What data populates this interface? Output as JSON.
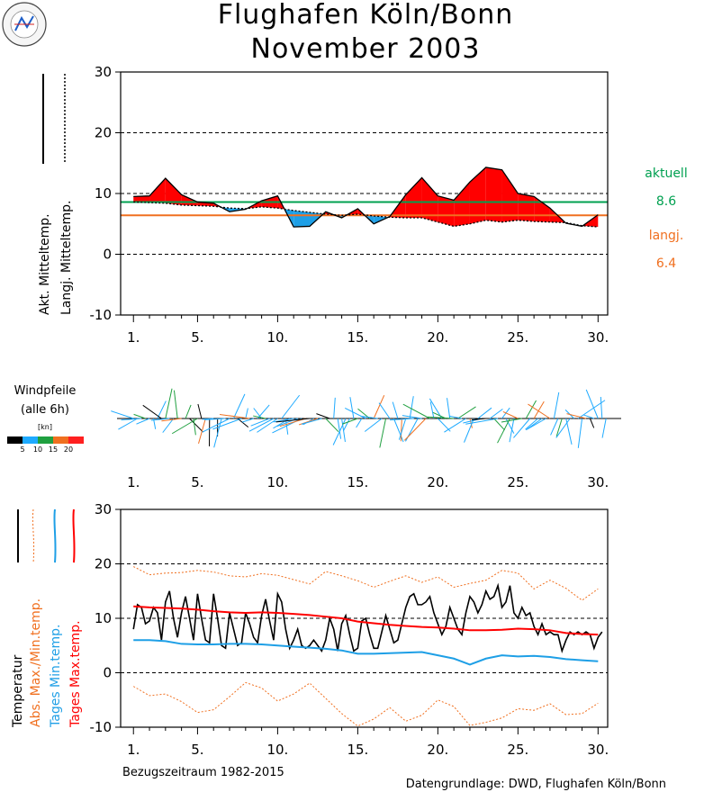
{
  "title": {
    "line1": "Flughafen Köln/Bonn",
    "line2": "November  2003"
  },
  "logo_text": "Uni-Leipzig Wetterdienst",
  "colors": {
    "above": "#ff0000",
    "below": "#1e9fe6",
    "aktuell": "#00a050",
    "langj": "#f07020",
    "black": "#000000",
    "windBlack": "#000000",
    "wind1": "#1eaaff",
    "wind2": "#20a040",
    "wind3": "#f07020",
    "wind4": "#ff2020"
  },
  "panel1": {
    "ylabels": [
      "Akt. Mitteltemp.",
      "Langj. Mitteltemp."
    ],
    "side": {
      "label1": "aktuell",
      "value1": "8.6",
      "label2": "langj.",
      "value2": "6.4"
    }
  },
  "wind": {
    "title": "Windpfeile",
    "subtitle": "(alle 6h)",
    "unit": "[kn]",
    "legend_ticks": [
      "5",
      "10",
      "15",
      "20"
    ]
  },
  "panel2": {
    "ylabels": [
      "Temperatur",
      "Abs. Max./Min.temp.",
      "Tages Min.temp.",
      "Tages Max.temp."
    ]
  },
  "footer": {
    "left": "Bezugszeitraum 1982-2015",
    "right": "Datengrundlage: DWD, Flughafen Köln/Bonn"
  },
  "chart_data": [
    {
      "type": "area",
      "x_ticks": [
        "1.",
        "5.",
        "10.",
        "15.",
        "20.",
        "25.",
        "30."
      ],
      "x_tick_values": [
        1,
        5,
        10,
        15,
        20,
        25,
        30
      ],
      "xlim": [
        0.2,
        30.6
      ],
      "ylim": [
        -10,
        30
      ],
      "y_ticks": [
        -10,
        0,
        10,
        20,
        30
      ],
      "grid": true,
      "days": [
        1,
        2,
        3,
        4,
        5,
        6,
        7,
        8,
        9,
        10,
        11,
        12,
        13,
        14,
        15,
        16,
        17,
        18,
        19,
        20,
        21,
        22,
        23,
        24,
        25,
        26,
        27,
        28,
        29,
        30
      ],
      "series": [
        {
          "name": "Akt. Mitteltemp.",
          "style": "solid",
          "values": [
            9.5,
            9.6,
            12.5,
            9.8,
            8.6,
            8.4,
            7.0,
            7.4,
            8.8,
            9.6,
            4.5,
            4.6,
            7.0,
            6.0,
            7.5,
            5.0,
            6.2,
            9.8,
            12.6,
            9.6,
            8.9,
            11.9,
            14.3,
            13.9,
            10.0,
            9.5,
            7.6,
            5.1,
            4.6,
            6.5
          ]
        },
        {
          "name": "Langj. Mitteltemp.",
          "style": "dotted",
          "values": [
            8.6,
            8.5,
            8.4,
            8.1,
            8.0,
            7.9,
            7.6,
            7.5,
            7.8,
            7.6,
            7.2,
            6.9,
            6.6,
            6.4,
            6.6,
            6.3,
            6.1,
            6.0,
            6.0,
            5.3,
            4.6,
            5.0,
            5.6,
            5.3,
            5.6,
            5.4,
            5.3,
            5.2,
            4.7,
            4.5
          ]
        }
      ],
      "hlines": [
        {
          "name": "aktuell",
          "value": 8.6
        },
        {
          "name": "langj.",
          "value": 6.4
        }
      ]
    },
    {
      "type": "line",
      "x_ticks": [
        "1.",
        "5.",
        "10.",
        "15.",
        "20.",
        "25.",
        "30."
      ],
      "x_tick_values": [
        1,
        5,
        10,
        15,
        20,
        25,
        30
      ],
      "xlim": [
        0.2,
        30.6
      ],
      "ylim": [
        -10,
        30
      ],
      "y_ticks": [
        -10,
        0,
        10,
        20,
        30
      ],
      "grid": true,
      "series": [
        {
          "name": "Temperatur",
          "style": "solid",
          "color": "black",
          "x": [
            1,
            1.25,
            1.5,
            1.75,
            2,
            2.25,
            2.5,
            2.75,
            3,
            3.25,
            3.5,
            3.75,
            4,
            4.25,
            4.5,
            4.75,
            5,
            5.25,
            5.5,
            5.75,
            6,
            6.25,
            6.5,
            6.75,
            7,
            7.25,
            7.5,
            7.75,
            8,
            8.25,
            8.5,
            8.75,
            9,
            9.25,
            9.5,
            9.75,
            10,
            10.25,
            10.5,
            10.75,
            11,
            11.25,
            11.5,
            11.75,
            12,
            12.25,
            12.5,
            12.75,
            13,
            13.25,
            13.5,
            13.75,
            14,
            14.25,
            14.5,
            14.75,
            15,
            15.25,
            15.5,
            15.75,
            16,
            16.25,
            16.5,
            16.75,
            17,
            17.25,
            17.5,
            17.75,
            18,
            18.25,
            18.5,
            18.75,
            19,
            19.25,
            19.5,
            19.75,
            20,
            20.25,
            20.5,
            20.75,
            21,
            21.25,
            21.5,
            21.75,
            22,
            22.25,
            22.5,
            22.75,
            23,
            23.25,
            23.5,
            23.75,
            24,
            24.25,
            24.5,
            24.75,
            25,
            25.25,
            25.5,
            25.75,
            26,
            26.25,
            26.5,
            26.75,
            27,
            27.25,
            27.5,
            27.75,
            28,
            28.25,
            28.5,
            28.75,
            29,
            29.25,
            29.5,
            29.75,
            30,
            30.25
          ],
          "values": [
            8,
            12.5,
            12,
            9,
            9.5,
            12,
            11,
            6,
            13,
            15,
            10,
            6.5,
            11,
            14,
            10,
            6,
            14.5,
            10,
            6,
            5.5,
            14.5,
            10,
            5,
            4.5,
            11,
            8,
            5,
            5.5,
            11,
            9,
            6.5,
            5.5,
            10.5,
            13.5,
            9.5,
            6,
            14.5,
            13,
            8,
            4.5,
            6,
            8,
            5,
            4.5,
            5,
            6,
            5,
            4,
            6,
            10,
            8,
            4,
            9,
            10.5,
            7,
            4,
            4.5,
            9.5,
            10,
            7,
            4.5,
            4.5,
            7.5,
            10.5,
            8,
            5.5,
            6,
            9,
            12,
            14,
            14.5,
            12.5,
            12.5,
            13,
            14,
            11,
            9,
            7,
            8.5,
            12,
            10,
            8,
            7,
            11,
            14,
            13,
            11,
            12.5,
            15,
            13.5,
            14,
            16,
            12,
            13,
            16,
            11,
            10,
            12,
            10.5,
            11,
            8.5,
            7,
            9,
            7,
            7.5,
            7,
            7,
            4,
            6,
            7.5,
            7,
            7.5,
            7,
            7.5,
            7,
            4.5,
            6.5,
            7.5
          ]
        },
        {
          "name": "Tages Max.temp.",
          "style": "solid",
          "color": "red",
          "x": [
            1,
            2,
            3,
            4,
            5,
            6,
            7,
            8,
            9,
            10,
            11,
            12,
            13,
            14,
            15,
            16,
            17,
            18,
            19,
            20,
            21,
            22,
            23,
            24,
            25,
            26,
            27,
            28,
            29,
            30
          ],
          "values": [
            12.2,
            12.0,
            11.9,
            11.8,
            11.6,
            11.3,
            11.1,
            11.0,
            11.1,
            11.0,
            10.8,
            10.6,
            10.3,
            10.0,
            9.4,
            9.1,
            8.8,
            8.6,
            8.4,
            8.3,
            8.1,
            7.8,
            7.8,
            7.9,
            8.1,
            8.0,
            7.8,
            7.3,
            7.1,
            7.0
          ]
        },
        {
          "name": "Tages Min.temp.",
          "style": "solid",
          "color": "blue",
          "x": [
            1,
            2,
            3,
            4,
            5,
            6,
            7,
            8,
            9,
            10,
            11,
            12,
            13,
            14,
            15,
            16,
            17,
            18,
            19,
            20,
            21,
            22,
            23,
            24,
            25,
            26,
            27,
            28,
            29,
            30
          ],
          "values": [
            6.0,
            6.0,
            5.8,
            5.3,
            5.2,
            5.2,
            5.3,
            5.3,
            5.2,
            5.0,
            4.8,
            4.6,
            4.4,
            4.1,
            3.5,
            3.5,
            3.6,
            3.7,
            3.8,
            3.2,
            2.6,
            1.5,
            2.6,
            3.2,
            3.0,
            3.1,
            2.9,
            2.5,
            2.3,
            2.1
          ]
        },
        {
          "name": "Abs. Max.temp.",
          "style": "dotted",
          "color": "orange",
          "x": [
            1,
            2,
            3,
            4,
            5,
            6,
            7,
            8,
            9,
            10,
            11,
            12,
            13,
            14,
            15,
            16,
            17,
            18,
            19,
            20,
            21,
            22,
            23,
            24,
            25,
            26,
            27,
            28,
            29,
            30
          ],
          "values": [
            19.5,
            18.0,
            18.3,
            18.4,
            18.8,
            18.5,
            17.8,
            17.6,
            18.2,
            17.9,
            17.1,
            16.3,
            18.6,
            17.8,
            16.9,
            15.7,
            16.8,
            17.8,
            16.6,
            17.6,
            15.7,
            16.4,
            17.0,
            18.8,
            18.3,
            15.4,
            17.0,
            15.5,
            13.3,
            15.4
          ]
        },
        {
          "name": "Abs. Min.temp.",
          "style": "dotted",
          "color": "orange",
          "x": [
            1,
            2,
            3,
            4,
            5,
            6,
            7,
            8,
            9,
            10,
            11,
            12,
            13,
            14,
            15,
            16,
            17,
            18,
            19,
            20,
            21,
            22,
            23,
            24,
            25,
            26,
            27,
            28,
            29,
            30
          ],
          "values": [
            -2.5,
            -4.2,
            -3.9,
            -5.3,
            -7.3,
            -6.8,
            -4.4,
            -1.8,
            -2.8,
            -5.2,
            -3.9,
            -1.9,
            -4.7,
            -7.5,
            -9.8,
            -8.5,
            -6.4,
            -8.9,
            -7.8,
            -5.0,
            -6.2,
            -9.7,
            -9.1,
            -8.3,
            -6.6,
            -6.9,
            -5.7,
            -7.7,
            -7.5,
            -5.6
          ]
        }
      ]
    }
  ]
}
